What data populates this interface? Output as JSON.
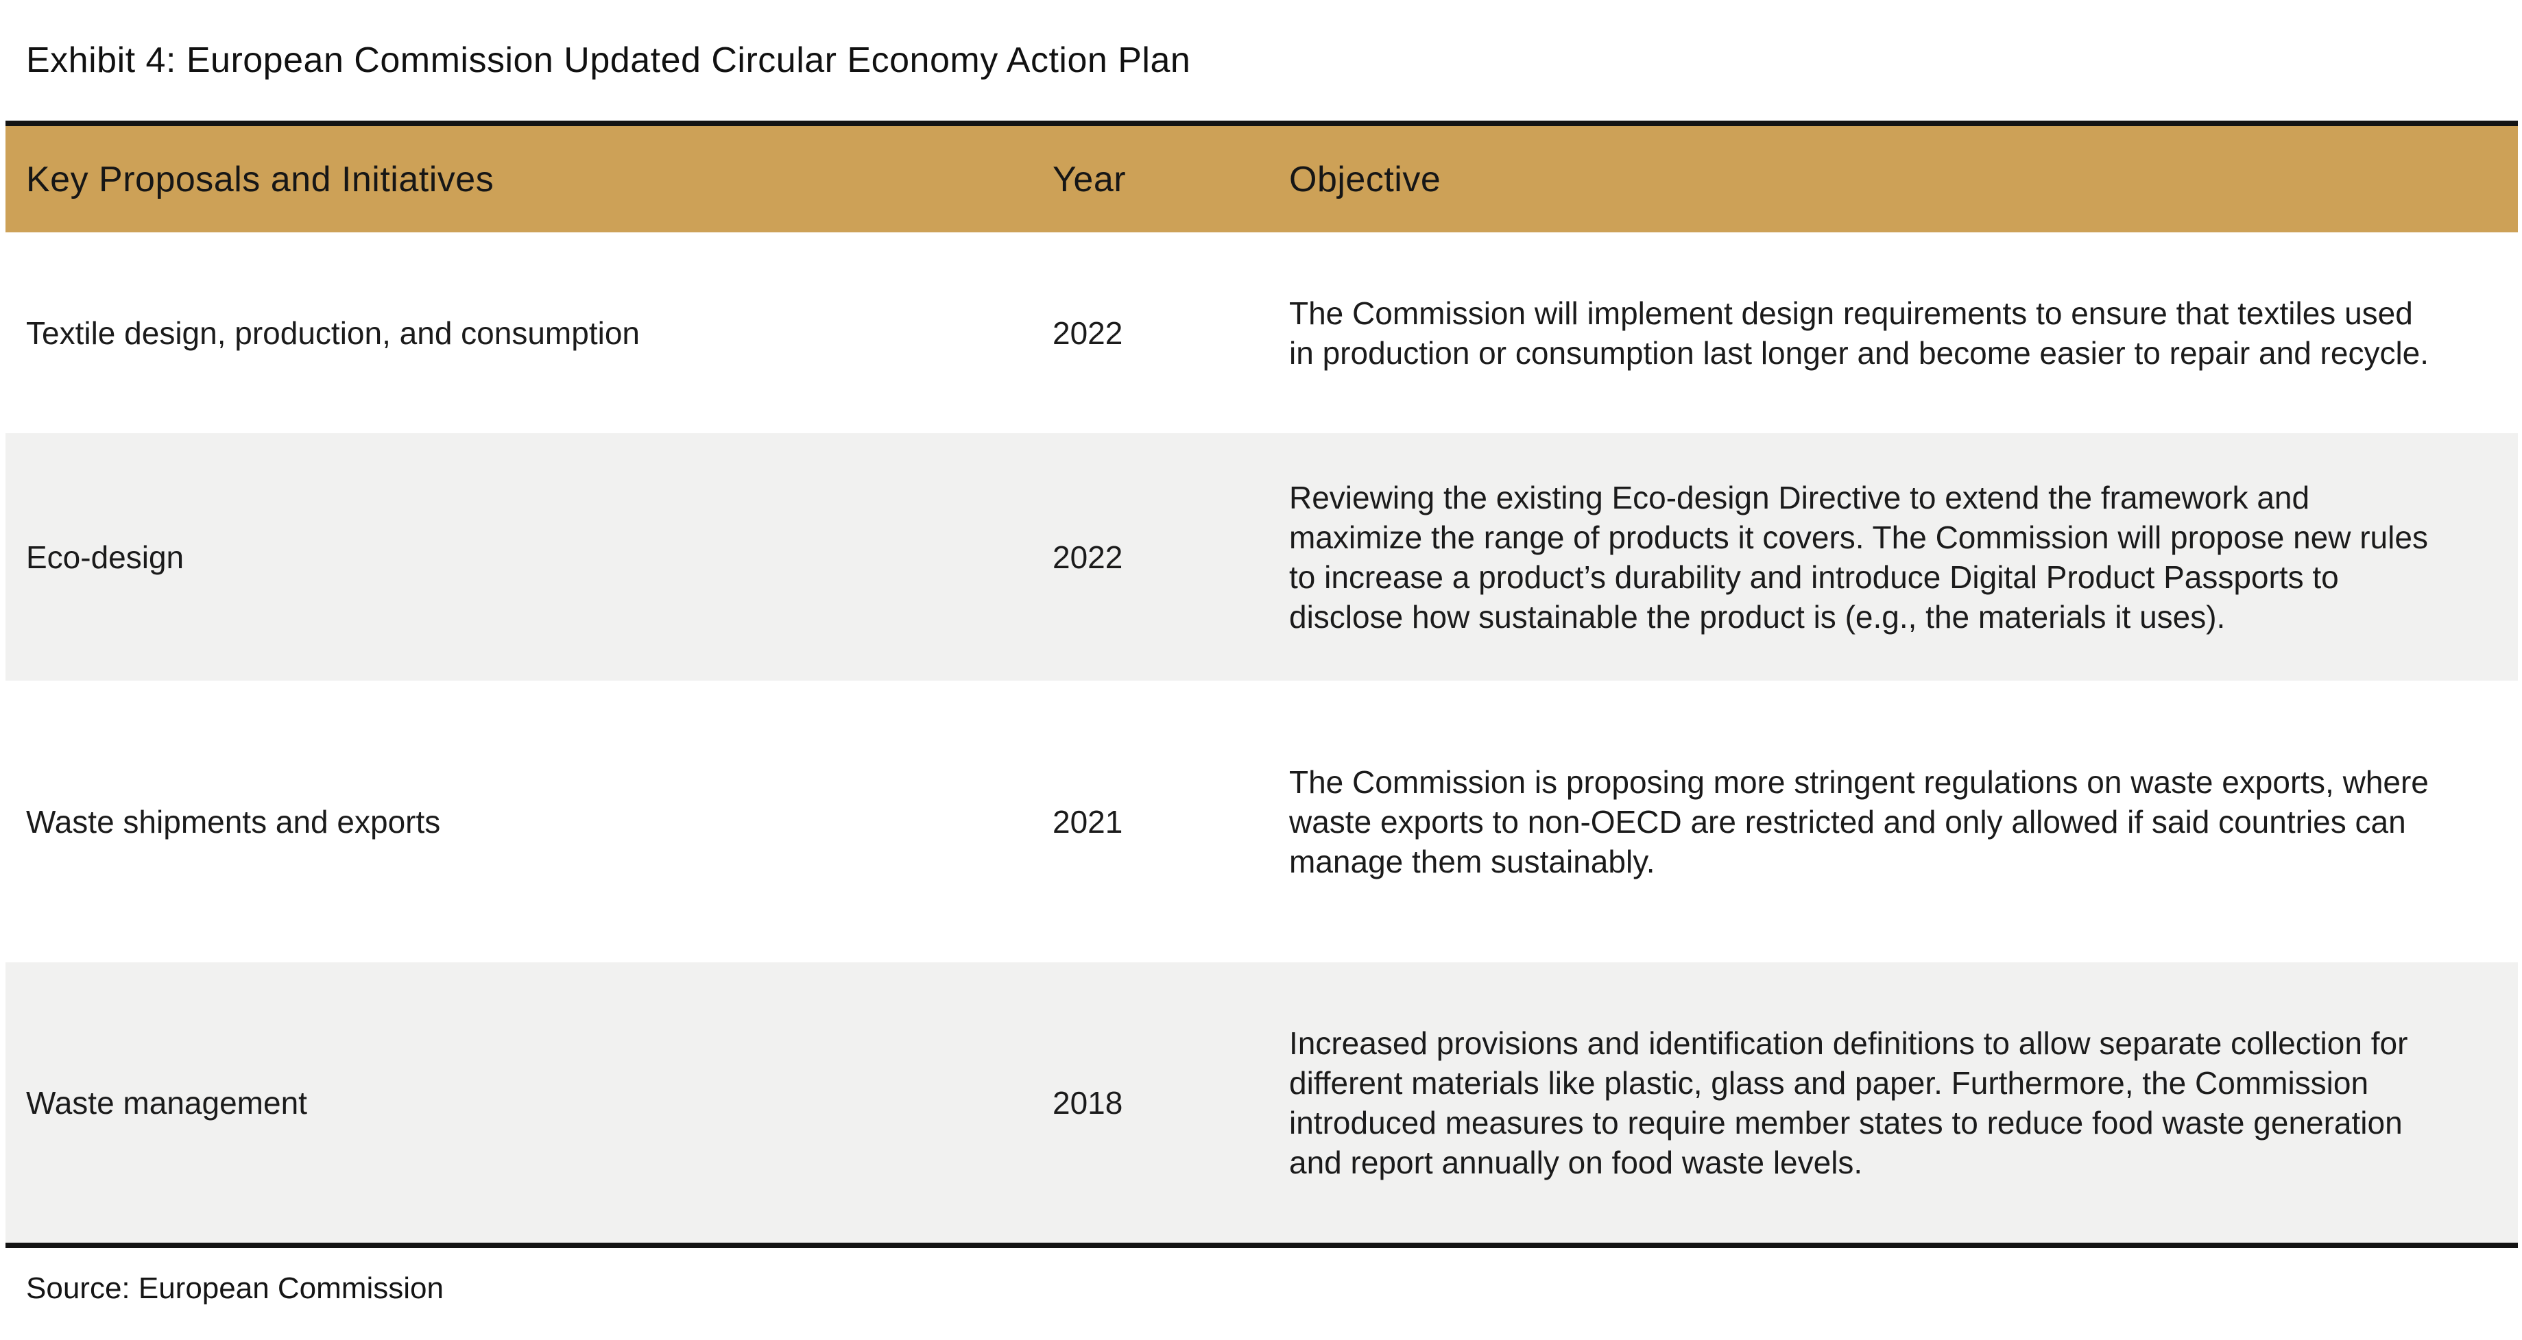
{
  "exhibit": {
    "title": "Exhibit 4: European Commission Updated Circular Economy Action Plan"
  },
  "theme": {
    "accent_color": "#CDA157",
    "stripe_color": "#F1F1F0",
    "rule_color": "#141414"
  },
  "table": {
    "columns": {
      "proposals": "Key Proposals and Initiatives",
      "year": "Year",
      "objective": "Objective"
    },
    "rows": [
      {
        "proposal": "Textile design, production, and consumption",
        "year": "2022",
        "objective": "The Commission will implement design requirements to ensure that textiles used in production or consumption last longer and become easier to repair and recycle."
      },
      {
        "proposal": "Eco-design",
        "year": "2022",
        "objective": "Reviewing the existing Eco-design Directive to extend the framework and maximize the range of products it covers. The Commission will propose new rules to increase a product’s durability and introduce Digital Product Passports to disclose how sustainable the product is (e.g., the materials it uses)."
      },
      {
        "proposal": "Waste shipments and exports",
        "year": "2021",
        "objective": "The Commission is proposing more stringent regulations on waste exports, where waste exports to non-OECD are restricted and only allowed if said countries can manage them sustainably."
      },
      {
        "proposal": "Waste management",
        "year": "2018",
        "objective": "Increased provisions and identification definitions to allow separate collection for different materials like plastic, glass and paper. Furthermore, the Commission introduced measures to require member states to reduce food waste generation and report annually on food waste levels."
      }
    ]
  },
  "footer": {
    "source": "Source: European Commission"
  }
}
